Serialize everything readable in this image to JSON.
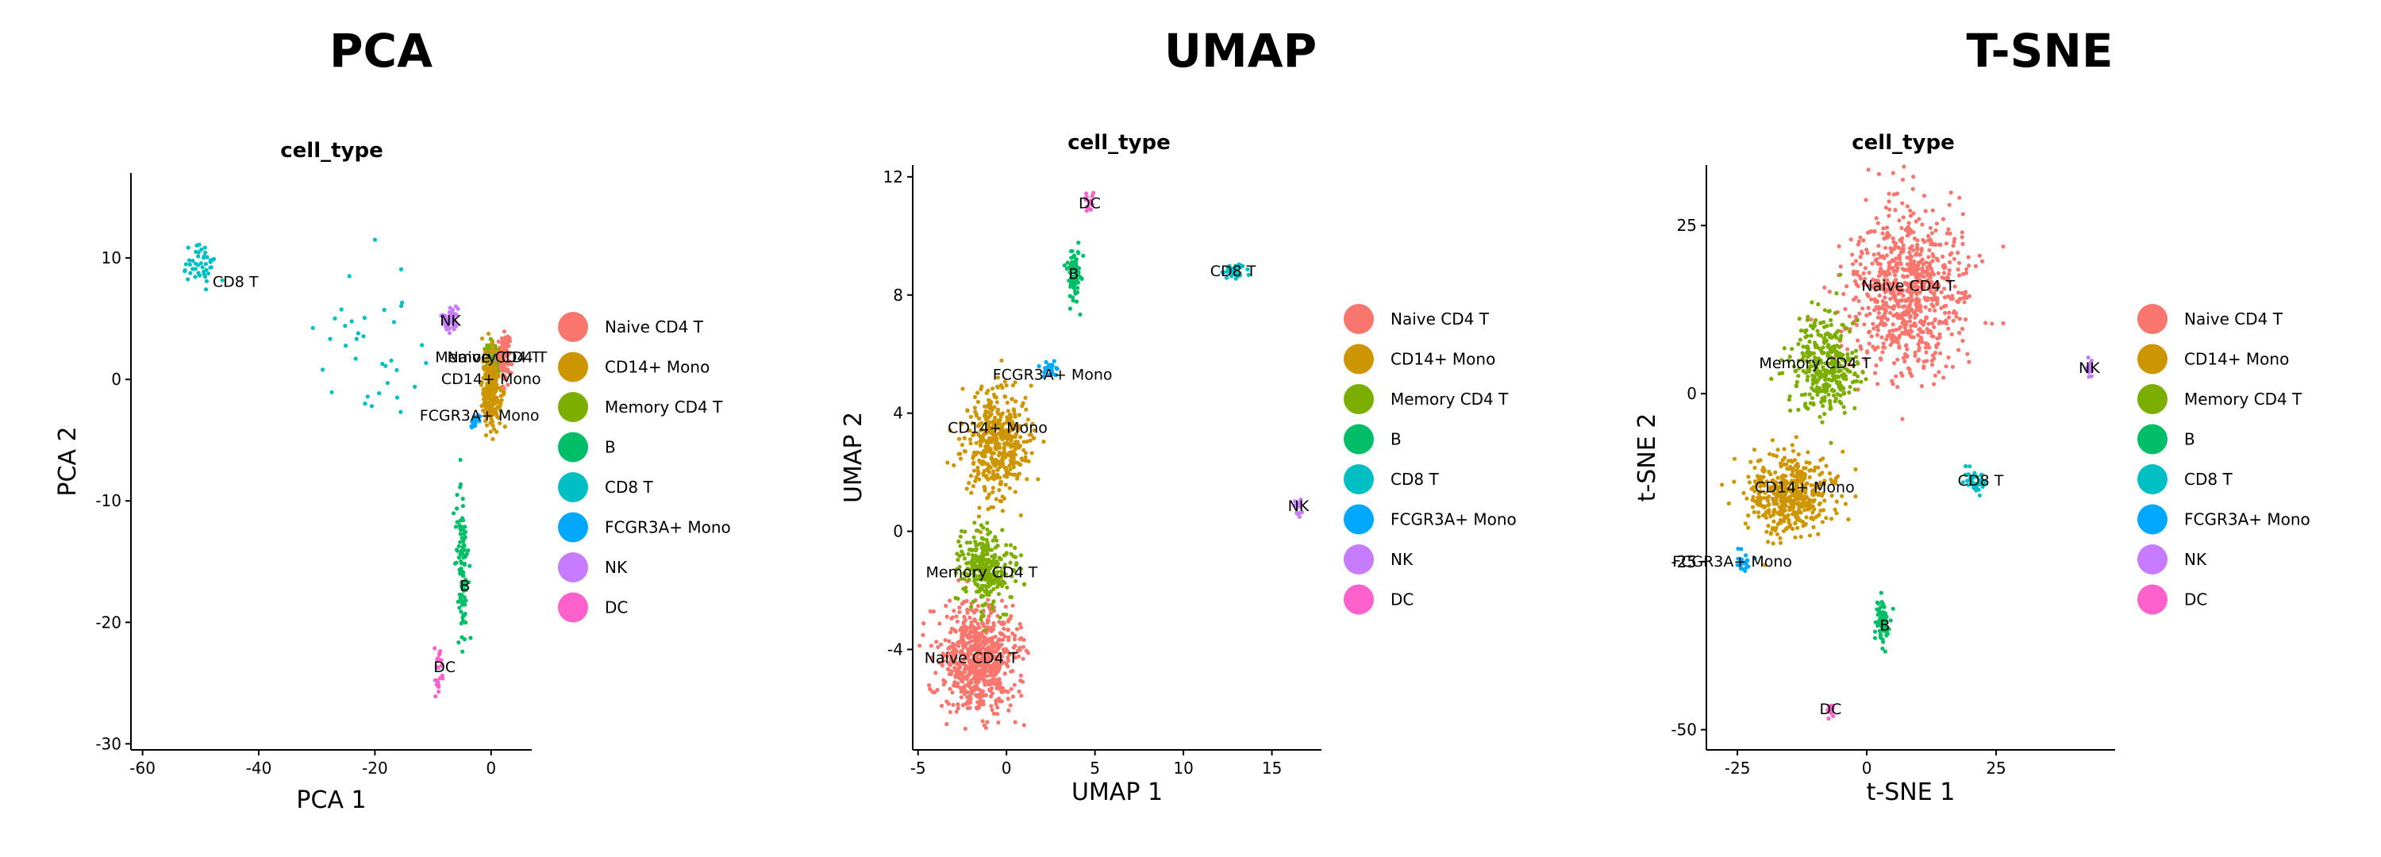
{
  "legend_title": "cell_type",
  "colors": {
    "Naive CD4 T": "#F8766D",
    "CD14+ Mono": "#CD9600",
    "Memory CD4 T": "#7CAE00",
    "B": "#00BE67",
    "CD8 T": "#00BFC4",
    "FCGR3A+ Mono": "#00A9FF",
    "NK": "#C77CFF",
    "DC": "#FF61CC"
  },
  "chart_data": [
    {
      "type": "scatter",
      "panel_title": "PCA",
      "title": "cell_type",
      "xlabel": "PCA 1",
      "ylabel": "PCA 2",
      "xlim": [
        -62,
        7
      ],
      "ylim": [
        -30.5,
        17
      ],
      "xticks": [
        -60,
        -40,
        -20,
        0
      ],
      "yticks": [
        10,
        0,
        -10,
        -20,
        -30
      ],
      "xtick_labels": [
        "-60",
        "-40",
        "-20",
        "0"
      ],
      "ytick_labels": [
        "10",
        "0",
        "-10",
        "-20",
        "-30"
      ],
      "legend": [
        "Naive CD4 T",
        "CD14+ Mono",
        "Memory CD4 T",
        "B",
        "CD8 T",
        "FCGR3A+ Mono",
        "NK",
        "DC"
      ],
      "clusters": [
        {
          "name": "Naive CD4 T",
          "label": "Naive CD4 T",
          "center": [
            2,
            2
          ],
          "spread": [
            1.2,
            1.8
          ],
          "n": 140,
          "label_pos": [
            0.5,
            1.8
          ]
        },
        {
          "name": "Memory CD4 T",
          "label": "Memory CD4 T",
          "center": [
            0,
            1
          ],
          "spread": [
            1.2,
            2
          ],
          "n": 90,
          "label_pos": [
            0,
            1.8
          ]
        },
        {
          "name": "CD14+ Mono",
          "label": "CD14+ Mono",
          "center": [
            0,
            -1
          ],
          "spread": [
            1.6,
            3.2
          ],
          "n": 220,
          "label_pos": [
            0,
            0
          ]
        },
        {
          "name": "FCGR3A+ Mono",
          "label": "FCGR3A+ Mono",
          "center": [
            -3,
            -3.5
          ],
          "spread": [
            0.8,
            0.8
          ],
          "n": 20,
          "label_pos": [
            -2,
            -3
          ]
        },
        {
          "name": "NK",
          "label": "NK",
          "center": [
            -7,
            5
          ],
          "spread": [
            1.5,
            1.2
          ],
          "n": 45,
          "label_pos": [
            -7,
            4.8
          ]
        },
        {
          "name": "B",
          "label": "B",
          "center": [
            -5,
            -15
          ],
          "spread": [
            1.0,
            6
          ],
          "n": 110,
          "label_pos": [
            -4.5,
            -17
          ]
        },
        {
          "name": "DC",
          "label": "DC",
          "center": [
            -9,
            -24
          ],
          "spread": [
            0.8,
            2.5
          ],
          "n": 25,
          "label_pos": [
            -8,
            -23.7
          ]
        },
        {
          "name": "CD8 T",
          "label": "CD8 T",
          "center": [
            -50,
            9.5
          ],
          "spread": [
            4,
            2
          ],
          "n": 45,
          "label_pos": [
            -44,
            8
          ]
        },
        {
          "name": "CD8 T",
          "label": "",
          "center": [
            -20,
            2
          ],
          "spread": [
            10,
            6
          ],
          "n": 35,
          "label_pos": null
        }
      ]
    },
    {
      "type": "scatter",
      "panel_title": "UMAP",
      "title": "cell_type",
      "xlabel": "UMAP 1",
      "ylabel": "UMAP 2",
      "xlim": [
        -5.3,
        17.8
      ],
      "ylim": [
        -7.4,
        12.4
      ],
      "xticks": [
        -5,
        0,
        5,
        10,
        15
      ],
      "yticks": [
        12,
        8,
        4,
        0,
        -4
      ],
      "xtick_labels": [
        "-5",
        "0",
        "5",
        "10",
        "15"
      ],
      "ytick_labels": [
        "12",
        "8",
        "4",
        "0",
        "-4"
      ],
      "legend": [
        "Naive CD4 T",
        "CD14+ Mono",
        "Memory CD4 T",
        "B",
        "CD8 T",
        "FCGR3A+ Mono",
        "NK",
        "DC"
      ],
      "clusters": [
        {
          "name": "Naive CD4 T",
          "label": "Naive CD4 T",
          "center": [
            -1.6,
            -4.3
          ],
          "spread": [
            2.2,
            1.8
          ],
          "n": 700,
          "label_pos": [
            -2,
            -4.3
          ]
        },
        {
          "name": "Memory CD4 T",
          "label": "Memory CD4 T",
          "center": [
            -1.2,
            -1.3
          ],
          "spread": [
            1.4,
            1.3
          ],
          "n": 300,
          "label_pos": [
            -1.4,
            -1.4
          ]
        },
        {
          "name": "CD14+ Mono",
          "label": "CD14+ Mono",
          "center": [
            -0.5,
            3.0
          ],
          "spread": [
            1.8,
            1.9
          ],
          "n": 450,
          "label_pos": [
            -0.5,
            3.5
          ]
        },
        {
          "name": "FCGR3A+ Mono",
          "label": "FCGR3A+ Mono",
          "center": [
            2.5,
            5.5
          ],
          "spread": [
            0.4,
            0.3
          ],
          "n": 25,
          "label_pos": [
            2.6,
            5.3
          ]
        },
        {
          "name": "B",
          "label": "B",
          "center": [
            3.8,
            8.6
          ],
          "spread": [
            0.4,
            1.0
          ],
          "n": 70,
          "label_pos": [
            3.8,
            8.7
          ]
        },
        {
          "name": "DC",
          "label": "DC",
          "center": [
            4.6,
            11.1
          ],
          "spread": [
            0.3,
            0.4
          ],
          "n": 15,
          "label_pos": [
            4.7,
            11.1
          ]
        },
        {
          "name": "CD8 T",
          "label": "CD8 T",
          "center": [
            12.8,
            8.8
          ],
          "spread": [
            0.8,
            0.3
          ],
          "n": 40,
          "label_pos": [
            12.8,
            8.8
          ]
        },
        {
          "name": "NK",
          "label": "NK",
          "center": [
            16.5,
            0.8
          ],
          "spread": [
            0.2,
            0.4
          ],
          "n": 15,
          "label_pos": [
            16.5,
            0.85
          ]
        }
      ]
    },
    {
      "type": "scatter",
      "panel_title": "T-SNE",
      "title": "cell_type",
      "xlabel": "t-SNE 1",
      "ylabel": "t-SNE 2",
      "xlim": [
        -31,
        48
      ],
      "ylim": [
        -53,
        34
      ],
      "xticks": [
        -25,
        0,
        25
      ],
      "yticks": [
        25,
        0,
        -25,
        -50
      ],
      "xtick_labels": [
        "-25",
        "0",
        "25"
      ],
      "ytick_labels": [
        "25",
        "0",
        "-25",
        "-50"
      ],
      "legend": [
        "Naive CD4 T",
        "CD14+ Mono",
        "Memory CD4 T",
        "B",
        "CD8 T",
        "FCGR3A+ Mono",
        "NK",
        "DC"
      ],
      "clusters": [
        {
          "name": "Naive CD4 T",
          "label": "Naive CD4 T",
          "center": [
            8,
            15
          ],
          "spread": [
            11,
            12
          ],
          "n": 800,
          "label_pos": [
            8,
            16
          ]
        },
        {
          "name": "Memory CD4 T",
          "label": "Memory CD4 T",
          "center": [
            -8,
            4
          ],
          "spread": [
            6,
            7
          ],
          "n": 350,
          "label_pos": [
            -10,
            4.5
          ]
        },
        {
          "name": "CD14+ Mono",
          "label": "CD14+ Mono",
          "center": [
            -15,
            -15
          ],
          "spread": [
            8,
            6
          ],
          "n": 450,
          "label_pos": [
            -12,
            -14
          ]
        },
        {
          "name": "FCGR3A+ Mono",
          "label": "FCGR3A+ Mono",
          "center": [
            -24,
            -25
          ],
          "spread": [
            1.5,
            1.5
          ],
          "n": 25,
          "label_pos": [
            -26,
            -25
          ]
        },
        {
          "name": "CD8 T",
          "label": "CD8 T",
          "center": [
            21,
            -13
          ],
          "spread": [
            2,
            2
          ],
          "n": 40,
          "label_pos": [
            22,
            -13
          ]
        },
        {
          "name": "NK",
          "label": "NK",
          "center": [
            43,
            4
          ],
          "spread": [
            0.8,
            1.5
          ],
          "n": 20,
          "label_pos": [
            43,
            3.8
          ]
        },
        {
          "name": "B",
          "label": "B",
          "center": [
            3,
            -34
          ],
          "spread": [
            1.2,
            3.5
          ],
          "n": 70,
          "label_pos": [
            3.5,
            -34.5
          ]
        },
        {
          "name": "DC",
          "label": "DC",
          "center": [
            -7,
            -47
          ],
          "spread": [
            0.7,
            1.0
          ],
          "n": 15,
          "label_pos": [
            -7,
            -47
          ]
        }
      ]
    }
  ]
}
